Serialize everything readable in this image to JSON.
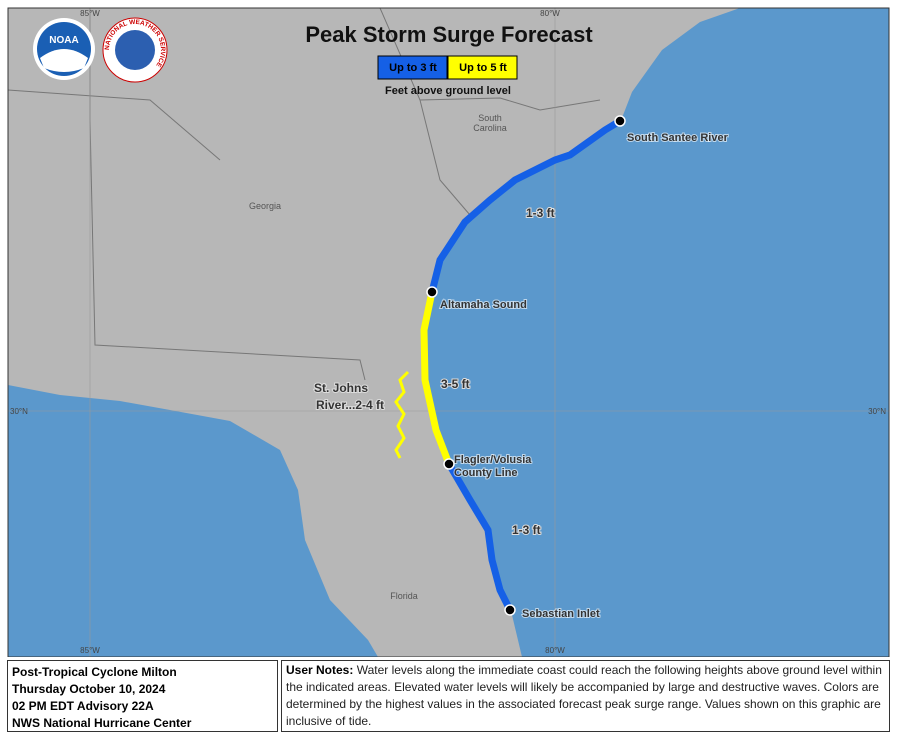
{
  "title": "Peak Storm Surge Forecast",
  "legend": {
    "items": [
      {
        "label": "Up to 3 ft",
        "color": "#1560e6"
      },
      {
        "label": "Up to 5 ft",
        "color": "#ffff00"
      }
    ],
    "caption": "Feet above ground level"
  },
  "logos": {
    "noaa": "NOAA",
    "nws": "NATIONAL WEATHER SERVICE"
  },
  "graticule": {
    "top": [
      "85°W",
      "80°W"
    ],
    "bottom": [
      "85°W",
      "80°W"
    ],
    "left": "30°N",
    "right": "30°N"
  },
  "regions": {
    "south_carolina": [
      "South",
      "Carolina"
    ],
    "georgia": "Georgia",
    "florida": "Florida"
  },
  "locations": [
    "South Santee River",
    "Altamaha Sound",
    [
      "Flagler/Volusia",
      "County Line"
    ],
    "Sebastian Inlet"
  ],
  "segments": [
    "1-3 ft",
    "3-5 ft",
    "1-3 ft",
    [
      "St. Johns",
      "River...2-4 ft"
    ]
  ],
  "footer": {
    "info": [
      "Post-Tropical Cyclone Milton",
      "Thursday October 10, 2024",
      "02 PM EDT Advisory 22A",
      "NWS National Hurricane Center"
    ],
    "notes_label": "User Notes:",
    "notes": "Water levels along the immediate coast could reach the following heights above ground level within the indicated areas. Elevated water levels will likely be accompanied by large and destructive waves. Colors are determined by the highest values in the associated forecast peak surge range. Values shown on this graphic are inclusive of tide."
  }
}
